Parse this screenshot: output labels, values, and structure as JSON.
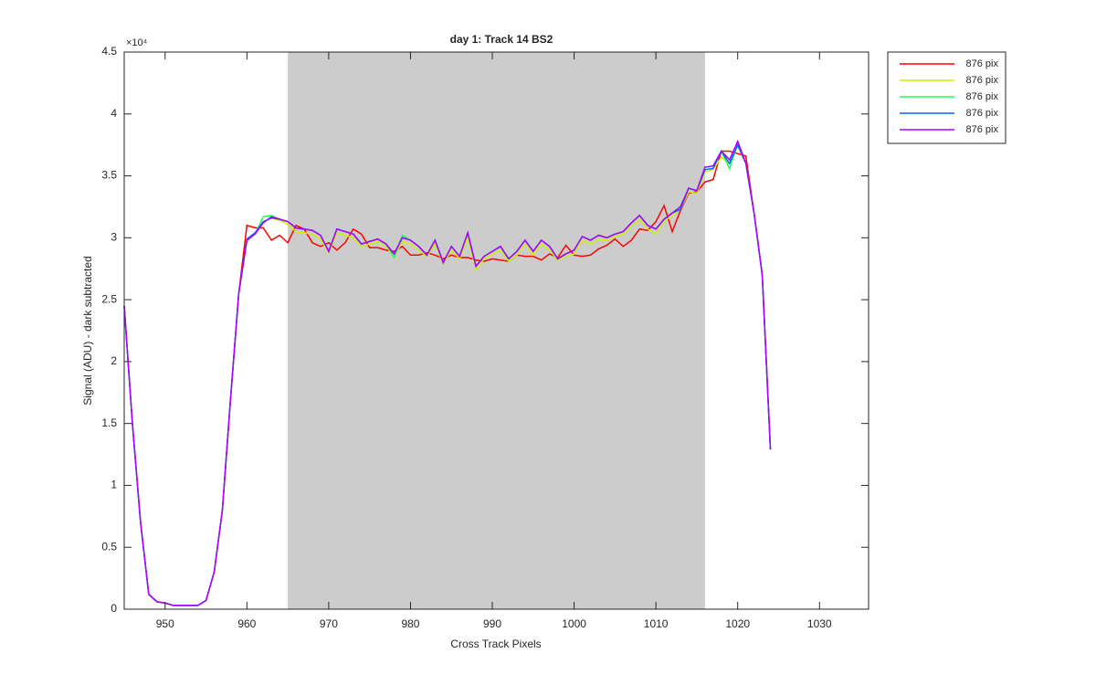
{
  "chart_data": {
    "type": "line",
    "title": "day 1: Track 14  BS2",
    "x_label": "Cross Track Pixels",
    "y_label": "Signal (ADU) - dark subtracted",
    "y_multiplier": "×10⁴",
    "xlim": [
      945,
      1036
    ],
    "ylim": [
      0,
      45000
    ],
    "xticks": [
      950,
      960,
      970,
      980,
      990,
      1000,
      1010,
      1020,
      1030
    ],
    "yticks": [
      0,
      {
        "value": 5000,
        "label": "0.5"
      },
      {
        "value": 10000,
        "label": "1"
      },
      {
        "value": 15000,
        "label": "1.5"
      },
      {
        "value": 20000,
        "label": "2"
      },
      {
        "value": 25000,
        "label": "2.5"
      },
      {
        "value": 30000,
        "label": "3"
      },
      {
        "value": 35000,
        "label": "3.5"
      },
      {
        "value": 40000,
        "label": "4"
      },
      {
        "value": 45000,
        "label": "4.5"
      }
    ],
    "shaded_region": [
      965,
      1016
    ],
    "shaded_color": "#cccccc",
    "legend": "outside-top-right",
    "x": [
      945,
      946,
      947,
      948,
      949,
      950,
      951,
      952,
      953,
      954,
      955,
      956,
      957,
      958,
      959,
      960,
      961,
      962,
      963,
      964,
      965,
      966,
      967,
      968,
      969,
      970,
      971,
      972,
      973,
      974,
      975,
      976,
      977,
      978,
      979,
      980,
      981,
      982,
      983,
      984,
      985,
      986,
      987,
      988,
      989,
      990,
      991,
      992,
      993,
      994,
      995,
      996,
      997,
      998,
      999,
      1000,
      1001,
      1002,
      1003,
      1004,
      1005,
      1006,
      1007,
      1008,
      1009,
      1010,
      1011,
      1012,
      1013,
      1014,
      1015,
      1016,
      1017,
      1018,
      1019,
      1020,
      1021,
      1022,
      1023,
      1024
    ],
    "series": [
      {
        "name": "876 pix",
        "color": "#ff0000",
        "values": [
          24500,
          15000,
          7000,
          1200,
          600,
          500,
          300,
          300,
          300,
          300,
          700,
          3000,
          8000,
          17000,
          25500,
          31000,
          30800,
          30800,
          29800,
          30200,
          29600,
          31000,
          30700,
          29600,
          29300,
          29600,
          29000,
          29600,
          30700,
          30300,
          29200,
          29200,
          29000,
          28900,
          29300,
          28600,
          28600,
          28800,
          28600,
          28300,
          28600,
          28400,
          28400,
          28200,
          28100,
          28300,
          28200,
          28100,
          28600,
          28500,
          28500,
          28200,
          28700,
          28400,
          29400,
          28600,
          28500,
          28600,
          29100,
          29400,
          29900,
          29300,
          29800,
          30700,
          30600,
          31300,
          32600,
          30500,
          32200,
          33600,
          33700,
          34500,
          34700,
          37000,
          37000,
          36800,
          36600,
          32000,
          27000,
          12900
        ]
      },
      {
        "name": "876 pix",
        "color": "#ccf000",
        "values": [
          24500,
          15000,
          7000,
          1200,
          600,
          500,
          300,
          300,
          300,
          300,
          700,
          3000,
          8000,
          17000,
          25500,
          29700,
          30300,
          31300,
          31600,
          31400,
          31100,
          30500,
          30400,
          30300,
          29900,
          28800,
          30400,
          30200,
          30000,
          29300,
          29500,
          29700,
          29300,
          28500,
          29700,
          29500,
          29000,
          28500,
          29500,
          27900,
          29000,
          28300,
          30000,
          27400,
          28300,
          28700,
          29000,
          28100,
          28600,
          29500,
          28600,
          29500,
          29000,
          28200,
          28500,
          28700,
          29800,
          29500,
          29900,
          29800,
          30100,
          30300,
          30900,
          31500,
          30700,
          30300,
          31300,
          31800,
          32300,
          33700,
          33600,
          35300,
          35500,
          36500,
          36000,
          37400,
          36000,
          32000,
          27000,
          12900
        ]
      },
      {
        "name": "876 pix",
        "color": "#1aff5a",
        "values": [
          24500,
          15000,
          7000,
          1200,
          600,
          500,
          300,
          300,
          300,
          300,
          700,
          3000,
          8000,
          17000,
          25500,
          29800,
          30300,
          31700,
          31800,
          31500,
          31300,
          30800,
          30700,
          30600,
          30200,
          28900,
          30700,
          30500,
          30300,
          29500,
          29700,
          29900,
          29500,
          28400,
          30200,
          29800,
          29300,
          28600,
          29800,
          28000,
          29300,
          28500,
          30400,
          27700,
          28500,
          28900,
          29300,
          28300,
          28900,
          29800,
          28900,
          29800,
          29300,
          28300,
          28700,
          29000,
          30100,
          29800,
          30200,
          30000,
          30300,
          30500,
          31200,
          31800,
          31000,
          30700,
          31500,
          32000,
          32500,
          34000,
          33800,
          35700,
          35800,
          37000,
          35600,
          37600,
          36000,
          32000,
          27000,
          12900
        ]
      },
      {
        "name": "876 pix",
        "color": "#0066ff",
        "values": [
          24500,
          15000,
          7000,
          1200,
          600,
          500,
          300,
          300,
          300,
          300,
          700,
          3000,
          8000,
          17000,
          25500,
          29900,
          30400,
          31300,
          31600,
          31500,
          31300,
          30800,
          30700,
          30600,
          30200,
          28900,
          30700,
          30500,
          30300,
          29500,
          29700,
          29900,
          29500,
          28700,
          30000,
          29800,
          29300,
          28600,
          29800,
          28000,
          29300,
          28500,
          30400,
          27700,
          28500,
          28900,
          29300,
          28300,
          28900,
          29800,
          28900,
          29800,
          29300,
          28300,
          28700,
          29000,
          30100,
          29800,
          30200,
          30000,
          30300,
          30500,
          31200,
          31800,
          31000,
          30700,
          31500,
          32000,
          32300,
          34000,
          33800,
          35500,
          35600,
          37000,
          36000,
          37500,
          36000,
          32000,
          27000,
          12900
        ]
      },
      {
        "name": "876 pix",
        "color": "#b000ff",
        "values": [
          24500,
          15000,
          7000,
          1200,
          600,
          500,
          300,
          300,
          300,
          300,
          700,
          3000,
          8000,
          17000,
          25500,
          29800,
          30300,
          31200,
          31700,
          31500,
          31300,
          30800,
          30700,
          30600,
          30200,
          28900,
          30700,
          30500,
          30300,
          29500,
          29700,
          29900,
          29500,
          28700,
          30000,
          29800,
          29300,
          28600,
          29800,
          28000,
          29300,
          28500,
          30400,
          27700,
          28500,
          28900,
          29300,
          28300,
          28900,
          29800,
          28900,
          29800,
          29300,
          28300,
          28700,
          29000,
          30100,
          29800,
          30200,
          30000,
          30300,
          30500,
          31200,
          31800,
          31000,
          30700,
          31500,
          32000,
          32500,
          34000,
          33800,
          35700,
          35800,
          37000,
          36300,
          37800,
          36000,
          32000,
          27000,
          12900
        ]
      }
    ]
  }
}
